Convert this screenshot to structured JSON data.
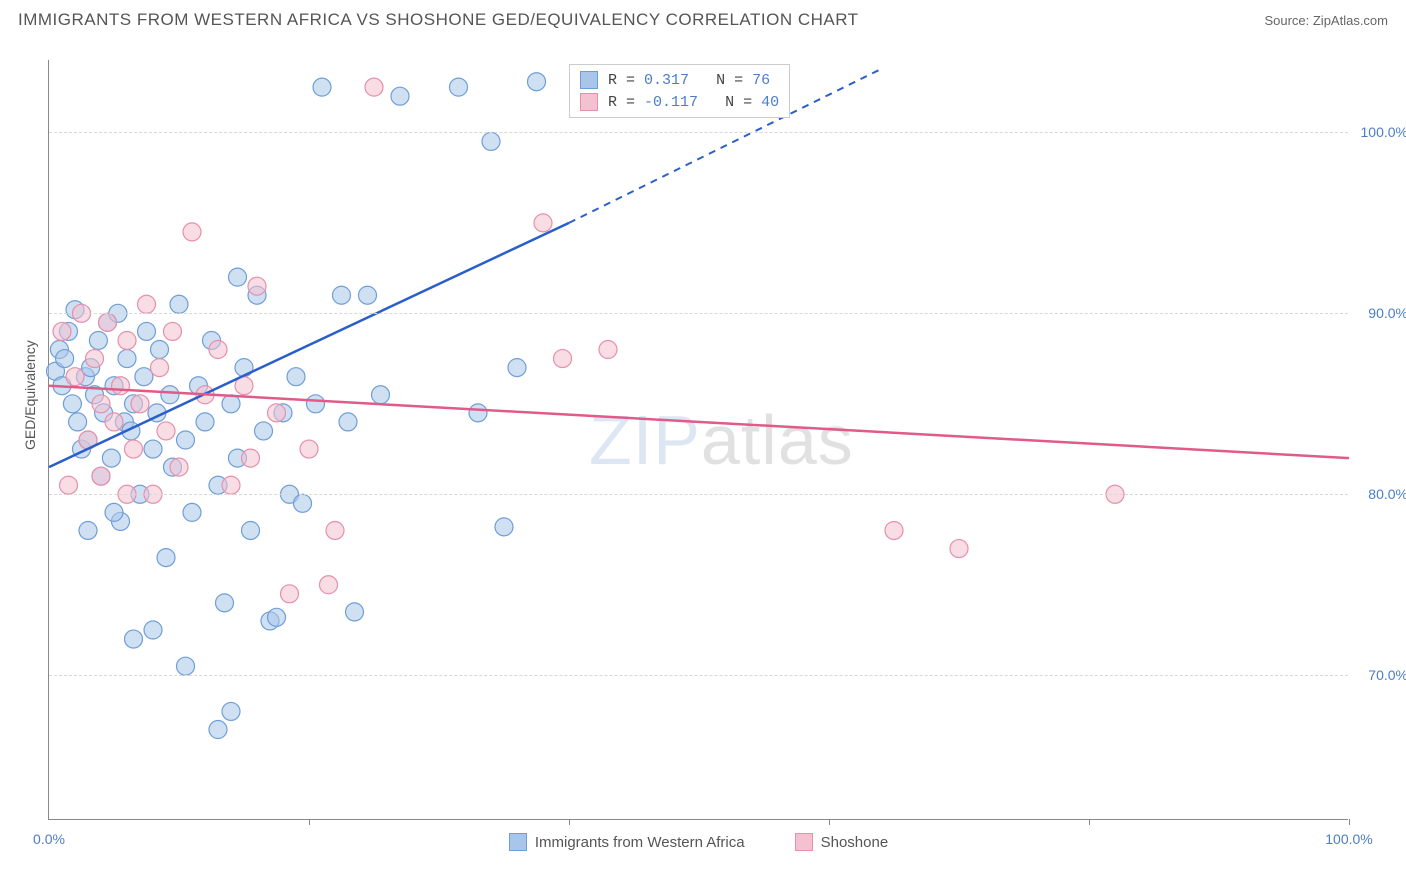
{
  "title": "IMMIGRANTS FROM WESTERN AFRICA VS SHOSHONE GED/EQUIVALENCY CORRELATION CHART",
  "source_label": "Source: ",
  "source_value": "ZipAtlas.com",
  "y_axis_label": "GED/Equivalency",
  "watermark_zip": "ZIP",
  "watermark_atlas": "atlas",
  "chart": {
    "type": "scatter",
    "xlim": [
      0,
      100
    ],
    "ylim": [
      62,
      104
    ],
    "x_ticks": [
      0,
      20,
      40,
      60,
      80,
      100
    ],
    "x_tick_labels": [
      "0.0%",
      "",
      "",
      "",
      "",
      "100.0%"
    ],
    "y_ticks": [
      70,
      80,
      90,
      100
    ],
    "y_tick_labels": [
      "70.0%",
      "80.0%",
      "90.0%",
      "100.0%"
    ],
    "grid_color": "#d8d8d8",
    "axis_color": "#888888",
    "background_color": "#ffffff",
    "marker_radius": 9,
    "marker_opacity": 0.55,
    "line_width": 2.5,
    "series": [
      {
        "name": "Immigrants from Western Africa",
        "fill_color": "#a9c6ea",
        "stroke_color": "#6f9ed6",
        "line_color": "#2a5fc9",
        "R": "0.317",
        "N": "76",
        "trend_solid": {
          "x1": 0,
          "y1": 81.5,
          "x2": 40,
          "y2": 95.0
        },
        "trend_dashed": {
          "x1": 40,
          "y1": 95.0,
          "x2": 64,
          "y2": 103.5
        },
        "points": [
          [
            0.5,
            86.8
          ],
          [
            0.8,
            88.0
          ],
          [
            1.0,
            86.0
          ],
          [
            1.2,
            87.5
          ],
          [
            1.5,
            89.0
          ],
          [
            1.8,
            85.0
          ],
          [
            2.0,
            90.2
          ],
          [
            2.2,
            84.0
          ],
          [
            2.5,
            82.5
          ],
          [
            2.8,
            86.5
          ],
          [
            3.0,
            83.0
          ],
          [
            3.2,
            87.0
          ],
          [
            3.5,
            85.5
          ],
          [
            3.8,
            88.5
          ],
          [
            4.0,
            81.0
          ],
          [
            4.2,
            84.5
          ],
          [
            4.5,
            89.5
          ],
          [
            4.8,
            82.0
          ],
          [
            5.0,
            86.0
          ],
          [
            5.3,
            90.0
          ],
          [
            5.5,
            78.5
          ],
          [
            5.8,
            84.0
          ],
          [
            6.0,
            87.5
          ],
          [
            6.3,
            83.5
          ],
          [
            6.5,
            85.0
          ],
          [
            7.0,
            80.0
          ],
          [
            7.3,
            86.5
          ],
          [
            7.5,
            89.0
          ],
          [
            8.0,
            82.5
          ],
          [
            8.3,
            84.5
          ],
          [
            8.5,
            88.0
          ],
          [
            9.0,
            76.5
          ],
          [
            9.3,
            85.5
          ],
          [
            9.5,
            81.5
          ],
          [
            10.0,
            90.5
          ],
          [
            10.5,
            83.0
          ],
          [
            11.0,
            79.0
          ],
          [
            11.5,
            86.0
          ],
          [
            12.0,
            84.0
          ],
          [
            12.5,
            88.5
          ],
          [
            13.0,
            80.5
          ],
          [
            13.5,
            74.0
          ],
          [
            14.0,
            85.0
          ],
          [
            14.5,
            82.0
          ],
          [
            15.0,
            87.0
          ],
          [
            15.5,
            78.0
          ],
          [
            16.0,
            91.0
          ],
          [
            16.5,
            83.5
          ],
          [
            17.0,
            73.0
          ],
          [
            17.5,
            73.2
          ],
          [
            18.0,
            84.5
          ],
          [
            18.5,
            80.0
          ],
          [
            19.0,
            86.5
          ],
          [
            14.0,
            68.0
          ],
          [
            13.0,
            67.0
          ],
          [
            10.5,
            70.5
          ],
          [
            8.0,
            72.5
          ],
          [
            6.5,
            72.0
          ],
          [
            21.0,
            102.5
          ],
          [
            22.5,
            91.0
          ],
          [
            20.5,
            85.0
          ],
          [
            19.5,
            79.5
          ],
          [
            23.0,
            84.0
          ],
          [
            23.5,
            73.5
          ],
          [
            24.5,
            91.0
          ],
          [
            25.5,
            85.5
          ],
          [
            27.0,
            102.0
          ],
          [
            31.5,
            102.5
          ],
          [
            33.0,
            84.5
          ],
          [
            34.0,
            99.5
          ],
          [
            37.5,
            102.8
          ],
          [
            35.0,
            78.2
          ],
          [
            36.0,
            87.0
          ],
          [
            14.5,
            92.0
          ],
          [
            5.0,
            79.0
          ],
          [
            3.0,
            78.0
          ]
        ]
      },
      {
        "name": "Shoshone",
        "fill_color": "#f3c1cf",
        "stroke_color": "#e78fab",
        "line_color": "#e05a8a",
        "R": "-0.117",
        "N": "40",
        "trend_solid": {
          "x1": 0,
          "y1": 86.0,
          "x2": 100,
          "y2": 82.0
        },
        "trend_dashed": null,
        "points": [
          [
            1.0,
            89.0
          ],
          [
            1.5,
            80.5
          ],
          [
            2.0,
            86.5
          ],
          [
            2.5,
            90.0
          ],
          [
            3.0,
            83.0
          ],
          [
            3.5,
            87.5
          ],
          [
            4.0,
            81.0
          ],
          [
            4.5,
            89.5
          ],
          [
            5.0,
            84.0
          ],
          [
            5.5,
            86.0
          ],
          [
            6.0,
            88.5
          ],
          [
            6.5,
            82.5
          ],
          [
            7.0,
            85.0
          ],
          [
            7.5,
            90.5
          ],
          [
            8.0,
            80.0
          ],
          [
            8.5,
            87.0
          ],
          [
            9.0,
            83.5
          ],
          [
            9.5,
            89.0
          ],
          [
            10.0,
            81.5
          ],
          [
            11.0,
            94.5
          ],
          [
            12.0,
            85.5
          ],
          [
            13.0,
            88.0
          ],
          [
            14.0,
            80.5
          ],
          [
            15.0,
            86.0
          ],
          [
            16.0,
            91.5
          ],
          [
            17.5,
            84.5
          ],
          [
            18.5,
            74.5
          ],
          [
            22.0,
            78.0
          ],
          [
            20.0,
            82.5
          ],
          [
            21.5,
            75.0
          ],
          [
            25.0,
            102.5
          ],
          [
            38.0,
            95.0
          ],
          [
            39.5,
            87.5
          ],
          [
            43.0,
            88.0
          ],
          [
            65.0,
            78.0
          ],
          [
            70.0,
            77.0
          ],
          [
            82.0,
            80.0
          ],
          [
            15.5,
            82.0
          ],
          [
            6.0,
            80.0
          ],
          [
            4.0,
            85.0
          ]
        ]
      }
    ]
  },
  "legend_top": {
    "R_label": "R =",
    "N_label": "N ="
  },
  "bottom_legend": {
    "items": [
      "Immigrants from Western Africa",
      "Shoshone"
    ]
  }
}
